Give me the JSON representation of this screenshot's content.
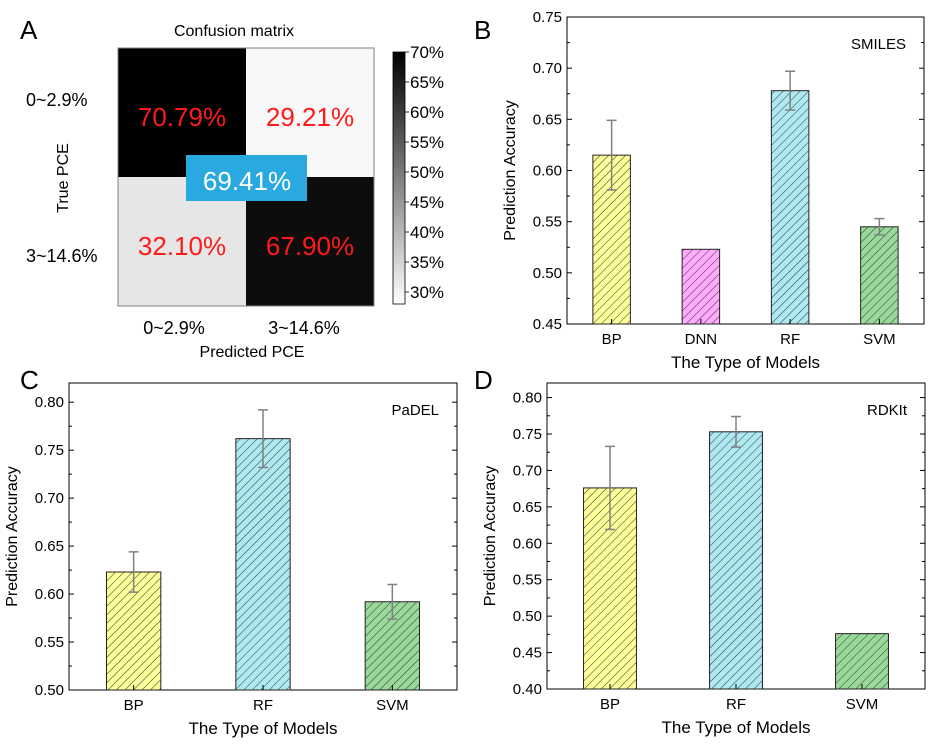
{
  "panels": {
    "A": {
      "letter": "A"
    },
    "B": {
      "letter": "B"
    },
    "C": {
      "letter": "C"
    },
    "D": {
      "letter": "D"
    }
  },
  "chart_data": [
    {
      "panel": "A",
      "type": "heatmap",
      "title": "Confusion matrix",
      "xlabel": "Predicted PCE",
      "ylabel": "True PCE",
      "row_labels": [
        "0~2.9%",
        "3~14.6%"
      ],
      "col_labels": [
        "0~2.9%",
        "3~14.6%"
      ],
      "values": [
        [
          70.79,
          29.21
        ],
        [
          32.1,
          67.9
        ]
      ],
      "cell_labels": [
        [
          "70.79%",
          "29.21%"
        ],
        [
          "32.10%",
          "67.90%"
        ]
      ],
      "overall_accuracy": "69.41%",
      "colorbar": {
        "range": [
          28,
          70
        ],
        "ticks": [
          "70%",
          "65%",
          "60%",
          "55%",
          "50%",
          "45%",
          "40%",
          "35%",
          "30%"
        ],
        "tick_values": [
          70,
          65,
          60,
          55,
          50,
          45,
          40,
          35,
          30
        ]
      },
      "colors": {
        "cell_text": "#ff1a1a",
        "overall_box": "#29a9e0",
        "overall_text": "#ffffff"
      }
    },
    {
      "panel": "B",
      "type": "bar",
      "annotation": "SMILES",
      "categories": [
        "BP",
        "DNN",
        "RF",
        "SVM"
      ],
      "values": [
        0.615,
        0.523,
        0.678,
        0.545
      ],
      "errors": [
        0.034,
        0.0,
        0.019,
        0.008
      ],
      "colors": [
        "#ffff99",
        "#ffaaff",
        "#aee8f0",
        "#99d99a"
      ],
      "xlabel": "The Type of Models",
      "ylabel": "Prediction Accuracy",
      "ylim": [
        0.45,
        0.75
      ],
      "yticks": [
        "0.45",
        "0.50",
        "0.55",
        "0.60",
        "0.65",
        "0.70",
        "0.75"
      ],
      "ytick_values": [
        0.45,
        0.5,
        0.55,
        0.6,
        0.65,
        0.7,
        0.75
      ]
    },
    {
      "panel": "C",
      "type": "bar",
      "annotation": "PaDEL",
      "categories": [
        "BP",
        "RF",
        "SVM"
      ],
      "values": [
        0.623,
        0.762,
        0.592
      ],
      "errors": [
        0.021,
        0.03,
        0.018
      ],
      "colors": [
        "#ffff99",
        "#aee8f0",
        "#99d99a"
      ],
      "xlabel": "The Type of Models",
      "ylabel": "Prediction Accuracy",
      "ylim": [
        0.5,
        0.82
      ],
      "yticks": [
        "0.50",
        "0.55",
        "0.60",
        "0.65",
        "0.70",
        "0.75",
        "0.80"
      ],
      "ytick_values": [
        0.5,
        0.55,
        0.6,
        0.65,
        0.7,
        0.75,
        0.8
      ]
    },
    {
      "panel": "D",
      "type": "bar",
      "annotation": "RDKIt",
      "categories": [
        "BP",
        "RF",
        "SVM"
      ],
      "values": [
        0.676,
        0.753,
        0.476
      ],
      "errors": [
        0.057,
        0.021,
        0.0
      ],
      "colors": [
        "#ffff99",
        "#aee8f0",
        "#99d99a"
      ],
      "xlabel": "The Type of Models",
      "ylabel": "Prediction Accuracy",
      "ylim": [
        0.4,
        0.82
      ],
      "yticks": [
        "0.40",
        "0.45",
        "0.50",
        "0.55",
        "0.60",
        "0.65",
        "0.70",
        "0.75",
        "0.80"
      ],
      "ytick_values": [
        0.4,
        0.45,
        0.5,
        0.55,
        0.6,
        0.65,
        0.7,
        0.75,
        0.8
      ]
    }
  ]
}
